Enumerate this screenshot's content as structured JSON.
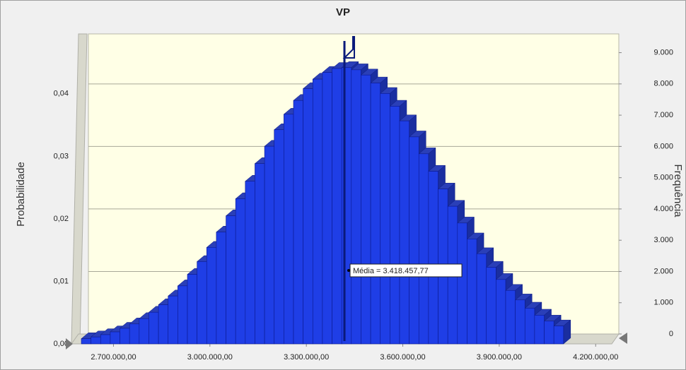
{
  "chart_data": {
    "type": "histogram",
    "title": "VP",
    "ylabel": "Probabilidade",
    "y2label": "Frequência",
    "bins": [
      2600000,
      2630000,
      2660000,
      2690000,
      2720000,
      2750000,
      2780000,
      2810000,
      2840000,
      2870000,
      2900000,
      2930000,
      2960000,
      2990000,
      3020000,
      3050000,
      3080000,
      3110000,
      3140000,
      3170000,
      3200000,
      3230000,
      3260000,
      3290000,
      3320000,
      3350000,
      3380000,
      3410000,
      3440000,
      3470000,
      3500000,
      3530000,
      3560000,
      3590000,
      3620000,
      3650000,
      3680000,
      3710000,
      3740000,
      3770000,
      3800000,
      3830000,
      3860000,
      3890000,
      3920000,
      3950000,
      3980000,
      4010000,
      4040000,
      4070000,
      4100000
    ],
    "series": [
      {
        "name": "Frequência",
        "color": "#1f3ee6",
        "axis": "y2",
        "values": [
          166,
          222,
          294,
          384,
          499,
          638,
          808,
          1012,
          1253,
          1533,
          1856,
          2224,
          2633,
          3087,
          3577,
          4097,
          4643,
          5203,
          5768,
          6322,
          6851,
          7346,
          7788,
          8166,
          8469,
          8685,
          8810,
          8838,
          8768,
          8601,
          8346,
          8010,
          7602,
          7134,
          6622,
          6081,
          5521,
          4955,
          4402,
          3867,
          3358,
          2884,
          2450,
          2060,
          1711,
          1406,
          1143,
          918,
          729,
          574
        ]
      }
    ],
    "xlim": [
      2600000,
      4250000
    ],
    "xticks": [
      {
        "value": 2700000,
        "label": "2.700.000,00"
      },
      {
        "value": 3000000,
        "label": "3.000.000,00"
      },
      {
        "value": 3300000,
        "label": "3.300.000,00"
      },
      {
        "value": 3600000,
        "label": "3.600.000,00"
      },
      {
        "value": 3900000,
        "label": "3.900.000,00"
      },
      {
        "value": 4200000,
        "label": "4.200.000,00"
      }
    ],
    "ylim": [
      0,
      0.048
    ],
    "yticks": [
      {
        "value": 0,
        "label": "0,00"
      },
      {
        "value": 0.01,
        "label": "0,01"
      },
      {
        "value": 0.02,
        "label": "0,02"
      },
      {
        "value": 0.03,
        "label": "0,03"
      },
      {
        "value": 0.04,
        "label": "0,04"
      }
    ],
    "y2lim": [
      0,
      9600
    ],
    "y2ticks": [
      0,
      {
        "value": 1000,
        "label": "1.000"
      },
      {
        "value": 2000,
        "label": "2.000"
      },
      {
        "value": 3000,
        "label": "3.000"
      },
      {
        "value": 4000,
        "label": "4.000"
      },
      {
        "value": 5000,
        "label": "5.000"
      },
      {
        "value": 6000,
        "label": "6.000"
      },
      {
        "value": 7000,
        "label": "7.000"
      },
      {
        "value": 8000,
        "label": "8.000"
      },
      {
        "value": 9000,
        "label": "9.000"
      }
    ],
    "grid": true,
    "mean": {
      "value": 3418457.77,
      "label": "Média = 3.418.457,77"
    }
  }
}
